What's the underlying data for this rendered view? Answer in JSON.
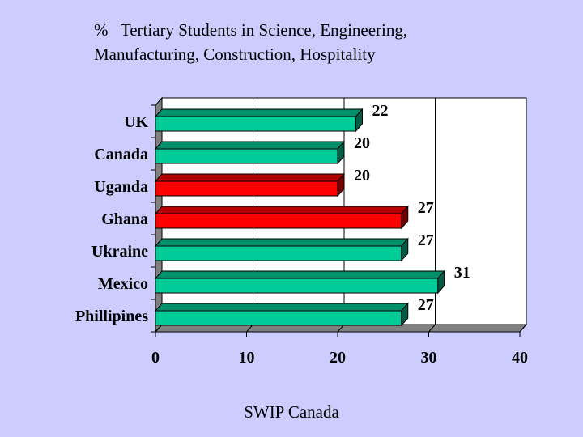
{
  "title": {
    "line1": "%   Tertiary Students in Science, Engineering,",
    "line2": "Manufacturing, Construction, Hospitality"
  },
  "footer": "SWIP Canada",
  "colors": {
    "background": "#ccccff",
    "green": "#00cc99",
    "red": "#ff0000"
  },
  "chart_data": {
    "type": "bar",
    "orientation": "horizontal",
    "title": "%   Tertiary Students in Science, Engineering, Manufacturing, Construction, Hospitality",
    "categories": [
      "UK",
      "Canada",
      "Uganda",
      "Ghana",
      "Ukraine",
      "Mexico",
      "Phillipines"
    ],
    "values": [
      22,
      20,
      20,
      27,
      27,
      31,
      27
    ],
    "bar_colors": [
      "green",
      "green",
      "red",
      "red",
      "green",
      "green",
      "green"
    ],
    "xlim": [
      0,
      40
    ],
    "xticks": [
      0,
      10,
      20,
      30,
      40
    ],
    "xlabel": "",
    "ylabel": "",
    "grid": "vertical gridlines"
  }
}
